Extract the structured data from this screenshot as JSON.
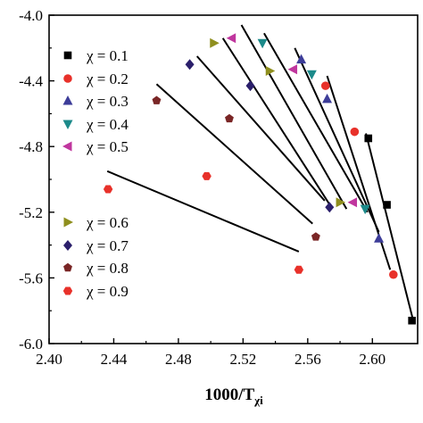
{
  "chart_data": {
    "type": "scatter",
    "title": "",
    "xlabel": "1000/T",
    "xlabel_sub": "χi",
    "ylabel": "",
    "xlim": [
      2.4,
      2.628
    ],
    "ylim": [
      -6.0,
      -4.0
    ],
    "x_ticks": [
      2.4,
      2.44,
      2.48,
      2.52,
      2.56,
      2.6
    ],
    "x_tick_labels": [
      "2.40",
      "2.44",
      "2.48",
      "2.52",
      "2.56",
      "2.60"
    ],
    "y_ticks": [
      -4.0,
      -4.4,
      -4.8,
      -5.2,
      -5.6,
      -6.0
    ],
    "y_tick_labels": [
      "-4.0",
      "-4.4",
      "-4.8",
      "-5.2",
      "-5.6",
      "-6.0"
    ],
    "grid": false,
    "legend_position": "left",
    "series": [
      {
        "name": "χ = 0.1",
        "marker": "square",
        "color": "#000000",
        "points": [
          [
            2.5975,
            -4.75
          ],
          [
            2.609,
            -5.155
          ],
          [
            2.6245,
            -5.86
          ]
        ],
        "fit": [
          [
            2.596,
            -4.72
          ],
          [
            2.625,
            -5.85
          ]
        ]
      },
      {
        "name": "χ = 0.2",
        "marker": "circle",
        "color": "#e8312a",
        "points": [
          [
            2.571,
            -4.43
          ],
          [
            2.589,
            -4.71
          ],
          [
            2.613,
            -5.58
          ]
        ],
        "fit": [
          [
            2.572,
            -4.37
          ],
          [
            2.611,
            -5.55
          ]
        ]
      },
      {
        "name": "χ = 0.3",
        "marker": "triangle-up",
        "color": "#3d3d99",
        "points": [
          [
            2.556,
            -4.27
          ],
          [
            2.572,
            -4.51
          ],
          [
            2.604,
            -5.36
          ]
        ],
        "fit": [
          [
            2.552,
            -4.2
          ],
          [
            2.604,
            -5.32
          ]
        ]
      },
      {
        "name": "χ = 0.4",
        "marker": "triangle-down",
        "color": "#1c8a8a",
        "points": [
          [
            2.532,
            -4.17
          ],
          [
            2.5625,
            -4.36
          ],
          [
            2.5955,
            -5.18
          ]
        ],
        "fit": [
          [
            2.533,
            -4.11
          ],
          [
            2.597,
            -5.2
          ]
        ]
      },
      {
        "name": "χ = 0.5",
        "marker": "triangle-left",
        "color": "#c0369e",
        "points": [
          [
            2.513,
            -4.14
          ],
          [
            2.551,
            -4.33
          ],
          [
            2.588,
            -5.14
          ]
        ],
        "fit": [
          [
            2.519,
            -4.06
          ],
          [
            2.584,
            -5.18
          ]
        ]
      },
      {
        "name": "χ = 0.6",
        "marker": "triangle-right",
        "color": "#8f8f1e",
        "points": [
          [
            2.502,
            -4.17
          ],
          [
            2.5365,
            -4.34
          ],
          [
            2.58,
            -5.14
          ]
        ],
        "fit": [
          [
            2.5075,
            -4.14
          ],
          [
            2.574,
            -5.16
          ]
        ]
      },
      {
        "name": "χ = 0.7",
        "marker": "diamond",
        "color": "#2b1f6b",
        "points": [
          [
            2.487,
            -4.3
          ],
          [
            2.5245,
            -4.43
          ],
          [
            2.5735,
            -5.17
          ]
        ],
        "fit": [
          [
            2.4915,
            -4.25
          ],
          [
            2.5705,
            -5.13
          ]
        ]
      },
      {
        "name": "χ = 0.8",
        "marker": "pentagon",
        "color": "#7a2626",
        "points": [
          [
            2.4665,
            -4.52
          ],
          [
            2.5115,
            -4.63
          ],
          [
            2.565,
            -5.35
          ]
        ],
        "fit": [
          [
            2.4665,
            -4.42
          ],
          [
            2.563,
            -5.27
          ]
        ]
      },
      {
        "name": "χ = 0.9",
        "marker": "hexagon",
        "color": "#e8312a",
        "points": [
          [
            2.4365,
            -5.06
          ],
          [
            2.4975,
            -4.98
          ],
          [
            2.5545,
            -5.55
          ]
        ],
        "fit": [
          [
            2.436,
            -4.95
          ],
          [
            2.5545,
            -5.44
          ]
        ]
      }
    ]
  },
  "legend": {
    "items": [
      "χ = 0.1",
      "χ = 0.2",
      "χ = 0.3",
      "χ = 0.4",
      "χ = 0.5",
      "χ = 0.6",
      "χ = 0.7",
      "χ = 0.8",
      "χ = 0.9"
    ]
  }
}
